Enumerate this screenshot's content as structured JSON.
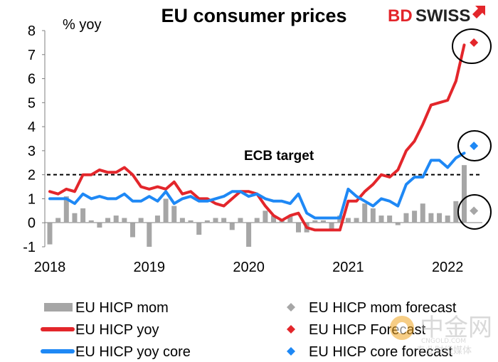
{
  "chart_data": {
    "type": "bar+line",
    "title": "EU consumer prices",
    "ylabel": "% yoy",
    "ylim": [
      -1,
      8
    ],
    "yticks": [
      "8",
      "7",
      "6",
      "5",
      "4",
      "3",
      "2",
      "1",
      "0",
      "-1"
    ],
    "x_tick_labels": [
      "2018",
      "2019",
      "2020",
      "2021",
      "2022"
    ],
    "annotation": "ECB target",
    "target_value": 2,
    "series": [
      {
        "name": "EU HICP mom",
        "kind": "bar",
        "color": "#a6a6a6",
        "values": [
          -0.9,
          0.2,
          1.1,
          0.4,
          0.6,
          0.1,
          -0.2,
          0.2,
          0.3,
          0.2,
          -0.6,
          0.2,
          -1.0,
          0.3,
          1.0,
          0.7,
          0.2,
          0.1,
          -0.5,
          0.1,
          0.2,
          0.2,
          -0.3,
          0.2,
          -1.0,
          0.2,
          0.5,
          0.3,
          0.1,
          0.3,
          -0.4,
          -0.4,
          0.1,
          0.1,
          -0.3,
          0.3,
          0.2,
          0.2,
          0.8,
          0.6,
          0.3,
          0.3,
          -0.1,
          0.4,
          0.5,
          0.8,
          0.4,
          0.4,
          0.3,
          0.9,
          2.4
        ]
      },
      {
        "name": "EU HICP yoy",
        "kind": "line",
        "color": "#e3262b",
        "values": [
          1.3,
          1.2,
          1.4,
          1.3,
          2.0,
          2.0,
          2.2,
          2.1,
          2.1,
          2.3,
          2.0,
          1.5,
          1.4,
          1.5,
          1.4,
          1.7,
          1.2,
          1.3,
          1.0,
          1.0,
          0.8,
          0.7,
          1.0,
          1.3,
          1.3,
          1.2,
          0.7,
          0.3,
          0.1,
          0.3,
          0.4,
          -0.2,
          -0.3,
          -0.3,
          -0.3,
          -0.3,
          0.9,
          0.9,
          1.3,
          1.6,
          2.0,
          1.9,
          2.2,
          3.0,
          3.4,
          4.1,
          4.9,
          5.0,
          5.1,
          5.9,
          7.4
        ]
      },
      {
        "name": "EU HICP yoy core",
        "kind": "line",
        "color": "#1e88f5",
        "values": [
          1.0,
          1.0,
          1.0,
          0.8,
          1.2,
          1.0,
          1.1,
          1.0,
          1.0,
          1.2,
          0.9,
          0.9,
          1.1,
          0.9,
          1.3,
          0.8,
          1.0,
          1.1,
          0.9,
          0.9,
          1.0,
          1.1,
          1.3,
          1.3,
          1.1,
          1.2,
          1.0,
          0.9,
          0.9,
          0.8,
          1.2,
          0.4,
          0.2,
          0.2,
          0.2,
          0.2,
          1.4,
          1.1,
          0.9,
          0.7,
          1.0,
          0.9,
          0.7,
          1.6,
          1.9,
          1.9,
          2.6,
          2.6,
          2.3,
          2.7,
          2.9
        ]
      },
      {
        "name": "EU HICP mom forecast",
        "kind": "marker",
        "color": "#a6a6a6",
        "value": 0.5
      },
      {
        "name": "EU HICP Forecast",
        "kind": "marker",
        "color": "#e3262b",
        "value": 7.5
      },
      {
        "name": "EU HICP core forecast",
        "kind": "marker",
        "color": "#1e88f5",
        "value": 3.2
      }
    ]
  },
  "branding": {
    "logo_left": "BD",
    "logo_right": "SWISS"
  },
  "watermark": {
    "main": "中金网",
    "sub": "CNGOLD.COM",
    "tagline": "专业财经媒体"
  }
}
